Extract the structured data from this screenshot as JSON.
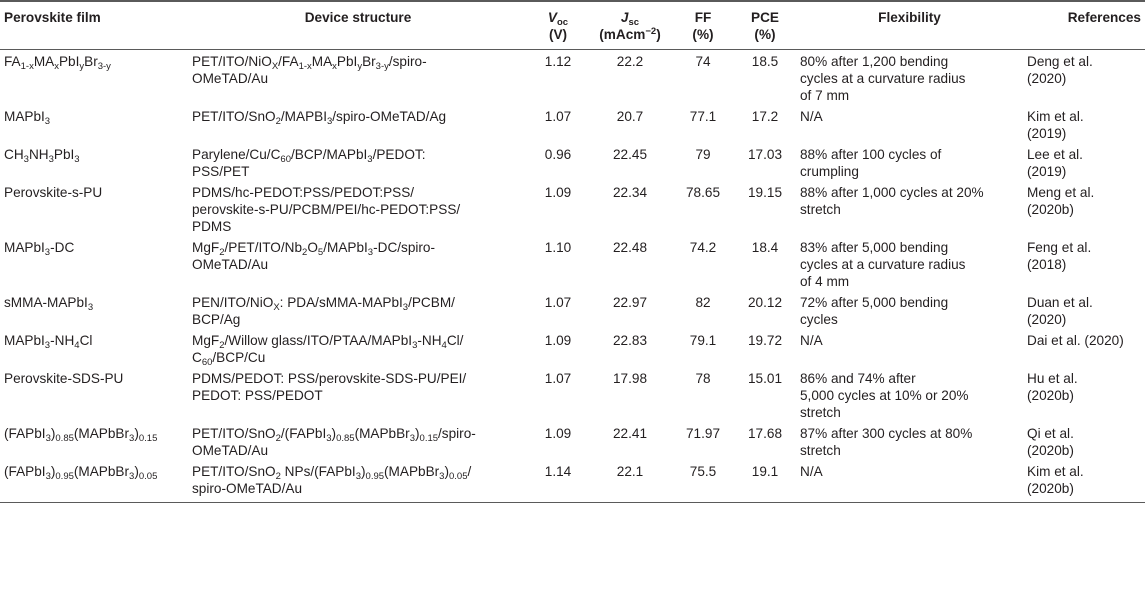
{
  "headers": {
    "film": "Perovskite film",
    "structure": "Device structure",
    "voc_sym": "V",
    "voc_sub": "oc",
    "voc_unit": "(V)",
    "jsc_sym": "J",
    "jsc_sub": "sc",
    "jsc_unit_base": "(mAcm",
    "jsc_unit_sup": "−2",
    "jsc_unit_close": ")",
    "ff": "FF",
    "ff_unit": "(%)",
    "pce": "PCE",
    "pce_unit": "(%)",
    "flex": "Flexibility",
    "refs": "References"
  },
  "rows": [
    {
      "film": [
        [
          "FA",
          ""
        ],
        [
          "1-x",
          "sub"
        ],
        [
          "MA",
          ""
        ],
        [
          "x",
          "sub"
        ],
        [
          "PbI",
          ""
        ],
        [
          "y",
          "sub"
        ],
        [
          "Br",
          ""
        ],
        [
          "3-y",
          "sub"
        ]
      ],
      "structure": [
        [
          "PET/ITO/NiO",
          ""
        ],
        [
          "X",
          "sub"
        ],
        [
          "/FA",
          ""
        ],
        [
          "1-x",
          "sub"
        ],
        [
          "MA",
          ""
        ],
        [
          "x",
          "sub"
        ],
        [
          "PbI",
          ""
        ],
        [
          "y",
          "sub"
        ],
        [
          "Br",
          ""
        ],
        [
          "3-y",
          "sub"
        ],
        [
          "/spiro-",
          ""
        ],
        [
          "",
          "br"
        ],
        [
          "OMeTAD/Au",
          ""
        ]
      ],
      "voc": "1.12",
      "jsc": "22.2",
      "ff": "74",
      "pce": "18.5",
      "flex": [
        [
          "80% after 1,200 bending",
          ""
        ],
        [
          "",
          "br"
        ],
        [
          "cycles at a curvature radius",
          ""
        ],
        [
          "",
          "br"
        ],
        [
          "of 7 mm",
          ""
        ]
      ],
      "ref": [
        [
          "Deng et al.",
          ""
        ],
        [
          "",
          "br"
        ],
        [
          "(2020)",
          ""
        ]
      ]
    },
    {
      "film": [
        [
          "MAPbI",
          ""
        ],
        [
          "3",
          "sub"
        ]
      ],
      "structure": [
        [
          "PET/ITO/SnO",
          ""
        ],
        [
          "2",
          "sub"
        ],
        [
          "/MAPBI",
          ""
        ],
        [
          "3",
          "sub"
        ],
        [
          "/spiro-OMeTAD/Ag",
          ""
        ]
      ],
      "voc": "1.07",
      "jsc": "20.7",
      "ff": "77.1",
      "pce": "17.2",
      "flex": [
        [
          "N/A",
          ""
        ]
      ],
      "ref": [
        [
          "Kim et al.",
          ""
        ],
        [
          "",
          "br"
        ],
        [
          "(2019)",
          ""
        ]
      ]
    },
    {
      "film": [
        [
          "CH",
          ""
        ],
        [
          "3",
          "sub"
        ],
        [
          "NH",
          ""
        ],
        [
          "3",
          "sub"
        ],
        [
          "PbI",
          ""
        ],
        [
          "3",
          "sub"
        ]
      ],
      "structure": [
        [
          "Parylene/Cu/C",
          ""
        ],
        [
          "60",
          "sub"
        ],
        [
          "/BCP/MAPbI",
          ""
        ],
        [
          "3",
          "sub"
        ],
        [
          "/PEDOT:",
          ""
        ],
        [
          "",
          "br"
        ],
        [
          "PSS/PET",
          ""
        ]
      ],
      "voc": "0.96",
      "jsc": "22.45",
      "ff": "79",
      "pce": "17.03",
      "flex": [
        [
          "88% after 100 cycles of",
          ""
        ],
        [
          "",
          "br"
        ],
        [
          "crumpling",
          ""
        ]
      ],
      "ref": [
        [
          "Lee et al.",
          ""
        ],
        [
          "",
          "br"
        ],
        [
          "(2019)",
          ""
        ]
      ]
    },
    {
      "film": [
        [
          "Perovskite-s-PU",
          ""
        ]
      ],
      "structure": [
        [
          "PDMS/hc-PEDOT:PSS/PEDOT:PSS/",
          ""
        ],
        [
          "",
          "br"
        ],
        [
          "perovskite-s-PU/PCBM/PEI/hc-PEDOT:PSS/",
          ""
        ],
        [
          "",
          "br"
        ],
        [
          "PDMS",
          ""
        ]
      ],
      "voc": "1.09",
      "jsc": "22.34",
      "ff": "78.65",
      "pce": "19.15",
      "flex": [
        [
          "88% after 1,000 cycles at 20%",
          ""
        ],
        [
          "",
          "br"
        ],
        [
          "stretch",
          ""
        ]
      ],
      "ref": [
        [
          "Meng et al.",
          ""
        ],
        [
          "",
          "br"
        ],
        [
          "(2020b)",
          ""
        ]
      ]
    },
    {
      "film": [
        [
          "MAPbI",
          ""
        ],
        [
          "3",
          "sub"
        ],
        [
          "-DC",
          ""
        ]
      ],
      "structure": [
        [
          "MgF",
          ""
        ],
        [
          "2",
          "sub"
        ],
        [
          "/PET/ITO/Nb",
          ""
        ],
        [
          "2",
          "sub"
        ],
        [
          "O",
          ""
        ],
        [
          "5",
          "sub"
        ],
        [
          "/MAPbI",
          ""
        ],
        [
          "3",
          "sub"
        ],
        [
          "-DC/spiro-",
          ""
        ],
        [
          "",
          "br"
        ],
        [
          "OMeTAD/Au",
          ""
        ]
      ],
      "voc": "1.10",
      "jsc": "22.48",
      "ff": "74.2",
      "pce": "18.4",
      "flex": [
        [
          "83% after 5,000 bending",
          ""
        ],
        [
          "",
          "br"
        ],
        [
          "cycles at a curvature radius",
          ""
        ],
        [
          "",
          "br"
        ],
        [
          "of 4 mm",
          ""
        ]
      ],
      "ref": [
        [
          "Feng et al.",
          ""
        ],
        [
          "",
          "br"
        ],
        [
          "(2018)",
          ""
        ]
      ]
    },
    {
      "film": [
        [
          "sMMA-MAPbI",
          ""
        ],
        [
          "3",
          "sub"
        ]
      ],
      "structure": [
        [
          "PEN/ITO/NiO",
          ""
        ],
        [
          "X",
          "sub"
        ],
        [
          ": PDA/sMMA-MAPbI",
          ""
        ],
        [
          "3",
          "sub"
        ],
        [
          "/PCBM/",
          ""
        ],
        [
          "",
          "br"
        ],
        [
          "BCP/Ag",
          ""
        ]
      ],
      "voc": "1.07",
      "jsc": "22.97",
      "ff": "82",
      "pce": "20.12",
      "flex": [
        [
          "72% after 5,000 bending",
          ""
        ],
        [
          "",
          "br"
        ],
        [
          "cycles",
          ""
        ]
      ],
      "ref": [
        [
          "Duan et al.",
          ""
        ],
        [
          "",
          "br"
        ],
        [
          "(2020)",
          ""
        ]
      ]
    },
    {
      "film": [
        [
          "MAPbI",
          ""
        ],
        [
          "3",
          "sub"
        ],
        [
          "-NH",
          ""
        ],
        [
          "4",
          "sub"
        ],
        [
          "Cl",
          ""
        ]
      ],
      "structure": [
        [
          "MgF",
          ""
        ],
        [
          "2",
          "sub"
        ],
        [
          "/Willow glass/ITO/PTAA/MAPbI",
          ""
        ],
        [
          "3",
          "sub"
        ],
        [
          "-NH",
          ""
        ],
        [
          "4",
          "sub"
        ],
        [
          "Cl/",
          ""
        ],
        [
          "",
          "br"
        ],
        [
          "C",
          ""
        ],
        [
          "60",
          "sub"
        ],
        [
          "/BCP/Cu",
          ""
        ]
      ],
      "voc": "1.09",
      "jsc": "22.83",
      "ff": "79.1",
      "pce": "19.72",
      "flex": [
        [
          "N/A",
          ""
        ]
      ],
      "ref": [
        [
          "Dai et al. (2020)",
          ""
        ]
      ]
    },
    {
      "film": [
        [
          "Perovskite-SDS-PU",
          ""
        ]
      ],
      "structure": [
        [
          "PDMS/PEDOT: PSS/perovskite-SDS-PU/PEI/",
          ""
        ],
        [
          "",
          "br"
        ],
        [
          "PEDOT: PSS/PEDOT",
          ""
        ]
      ],
      "voc": "1.07",
      "jsc": "17.98",
      "ff": "78",
      "pce": "15.01",
      "flex": [
        [
          "86% and 74% after",
          ""
        ],
        [
          "",
          "br"
        ],
        [
          "5,000 cycles at 10% or 20%",
          ""
        ],
        [
          "",
          "br"
        ],
        [
          "stretch",
          ""
        ]
      ],
      "ref": [
        [
          "Hu et al.",
          ""
        ],
        [
          "",
          "br"
        ],
        [
          "(2020b)",
          ""
        ]
      ]
    },
    {
      "film": [
        [
          "(FAPbI",
          ""
        ],
        [
          "3",
          "sub"
        ],
        [
          ")",
          ""
        ],
        [
          "0.85",
          "sub"
        ],
        [
          "(MAPbBr",
          ""
        ],
        [
          "3",
          "sub"
        ],
        [
          ")",
          ""
        ],
        [
          "0.15",
          "sub"
        ]
      ],
      "structure": [
        [
          "PET/ITO/SnO",
          ""
        ],
        [
          "2",
          "sub"
        ],
        [
          "/(FAPbI",
          ""
        ],
        [
          "3",
          "sub"
        ],
        [
          ")",
          ""
        ],
        [
          "0.85",
          "sub"
        ],
        [
          "(MAPbBr",
          ""
        ],
        [
          "3",
          "sub"
        ],
        [
          ")",
          ""
        ],
        [
          "0.15",
          "sub"
        ],
        [
          "/spiro-",
          ""
        ],
        [
          "",
          "br"
        ],
        [
          "OMeTAD/Au",
          ""
        ]
      ],
      "voc": "1.09",
      "jsc": "22.41",
      "ff": "71.97",
      "pce": "17.68",
      "flex": [
        [
          "87% after 300 cycles at 80%",
          ""
        ],
        [
          "",
          "br"
        ],
        [
          "stretch",
          ""
        ]
      ],
      "ref": [
        [
          "Qi et al.",
          ""
        ],
        [
          "",
          "br"
        ],
        [
          "(2020b)",
          ""
        ]
      ]
    },
    {
      "film": [
        [
          "(FAPbI",
          ""
        ],
        [
          "3",
          "sub"
        ],
        [
          ")",
          ""
        ],
        [
          "0.95",
          "sub"
        ],
        [
          "(MAPbBr",
          ""
        ],
        [
          "3",
          "sub"
        ],
        [
          ")",
          ""
        ],
        [
          "0.05",
          "sub"
        ]
      ],
      "structure": [
        [
          "PET/ITO/SnO",
          ""
        ],
        [
          "2",
          "sub"
        ],
        [
          " NPs/(FAPbI",
          ""
        ],
        [
          "3",
          "sub"
        ],
        [
          ")",
          ""
        ],
        [
          "0.95",
          "sub"
        ],
        [
          "(MAPbBr",
          ""
        ],
        [
          "3",
          "sub"
        ],
        [
          ")",
          ""
        ],
        [
          "0.05",
          "sub"
        ],
        [
          "/",
          ""
        ],
        [
          "",
          "br"
        ],
        [
          "spiro-OMeTAD/Au",
          ""
        ]
      ],
      "voc": "1.14",
      "jsc": "22.1",
      "ff": "75.5",
      "pce": "19.1",
      "flex": [
        [
          "N/A",
          ""
        ]
      ],
      "ref": [
        [
          "Kim et al.",
          ""
        ],
        [
          "",
          "br"
        ],
        [
          "(2020b)",
          ""
        ]
      ]
    }
  ]
}
